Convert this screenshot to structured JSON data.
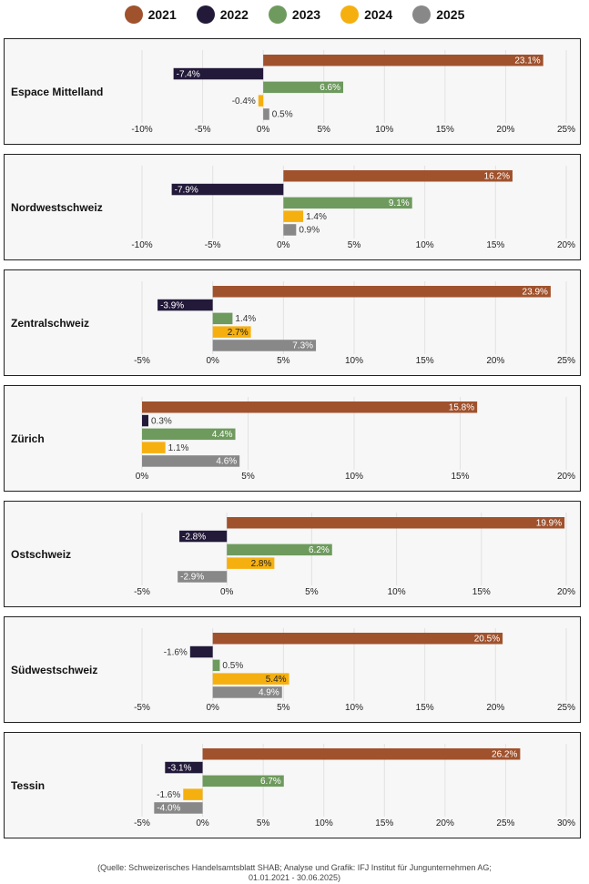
{
  "legend": [
    {
      "label": "2021",
      "color": "#a0522d"
    },
    {
      "label": "2022",
      "color": "#231a3a"
    },
    {
      "label": "2023",
      "color": "#6e9a5e"
    },
    {
      "label": "2024",
      "color": "#f5b010"
    },
    {
      "label": "2025",
      "color": "#888888"
    }
  ],
  "chart_data": [
    {
      "type": "bar",
      "title": "Espace Mittelland",
      "series": [
        "2021",
        "2022",
        "2023",
        "2024",
        "2025"
      ],
      "values": [
        23.1,
        -7.4,
        6.6,
        -0.4,
        0.5
      ],
      "labels": [
        "23.1%",
        "-7.4%",
        "6.6%",
        "-0.4%",
        "0.5%"
      ],
      "xlim": [
        -10,
        25
      ],
      "ticks": [
        -10,
        -5,
        0,
        5,
        10,
        15,
        20,
        25
      ]
    },
    {
      "type": "bar",
      "title": "Nordwestschweiz",
      "series": [
        "2021",
        "2022",
        "2023",
        "2024",
        "2025"
      ],
      "values": [
        16.2,
        -7.9,
        9.1,
        1.4,
        0.9
      ],
      "labels": [
        "16.2%",
        "-7.9%",
        "9.1%",
        "1.4%",
        "0.9%"
      ],
      "xlim": [
        -10,
        20
      ],
      "ticks": [
        -10,
        -5,
        0,
        5,
        10,
        15,
        20
      ]
    },
    {
      "type": "bar",
      "title": "Zentralschweiz",
      "series": [
        "2021",
        "2022",
        "2023",
        "2024",
        "2025"
      ],
      "values": [
        23.9,
        -3.9,
        1.4,
        2.7,
        7.3
      ],
      "labels": [
        "23.9%",
        "-3.9%",
        "1.4%",
        "2.7%",
        "7.3%"
      ],
      "xlim": [
        -5,
        25
      ],
      "ticks": [
        -5,
        0,
        5,
        10,
        15,
        20,
        25
      ]
    },
    {
      "type": "bar",
      "title": "Zürich",
      "series": [
        "2021",
        "2022",
        "2023",
        "2024",
        "2025"
      ],
      "values": [
        15.8,
        0.3,
        4.4,
        1.1,
        4.6
      ],
      "labels": [
        "15.8%",
        "0.3%",
        "4.4%",
        "1.1%",
        "4.6%"
      ],
      "xlim": [
        0,
        20
      ],
      "ticks": [
        0,
        5,
        10,
        15,
        20
      ]
    },
    {
      "type": "bar",
      "title": "Ostschweiz",
      "series": [
        "2021",
        "2022",
        "2023",
        "2024",
        "2025"
      ],
      "values": [
        19.9,
        -2.8,
        6.2,
        2.8,
        -2.9
      ],
      "labels": [
        "19.9%",
        "-2.8%",
        "6.2%",
        "2.8%",
        "-2.9%"
      ],
      "xlim": [
        -5,
        20
      ],
      "ticks": [
        -5,
        0,
        5,
        10,
        15,
        20
      ]
    },
    {
      "type": "bar",
      "title": "Südwestschweiz",
      "series": [
        "2021",
        "2022",
        "2023",
        "2024",
        "2025"
      ],
      "values": [
        20.5,
        -1.6,
        0.5,
        5.4,
        4.9
      ],
      "labels": [
        "20.5%",
        "-1.6%",
        "0.5%",
        "5.4%",
        "4.9%"
      ],
      "xlim": [
        -5,
        25
      ],
      "ticks": [
        -5,
        0,
        5,
        10,
        15,
        20,
        25
      ]
    },
    {
      "type": "bar",
      "title": "Tessin",
      "series": [
        "2021",
        "2022",
        "2023",
        "2024",
        "2025"
      ],
      "values": [
        26.2,
        -3.1,
        6.7,
        -1.6,
        -4.0
      ],
      "labels": [
        "26.2%",
        "-3.1%",
        "6.7%",
        "-1.6%",
        "-4.0%"
      ],
      "xlim": [
        -5,
        30
      ],
      "ticks": [
        -5,
        0,
        5,
        10,
        15,
        20,
        25,
        30
      ]
    }
  ],
  "footer": {
    "line1": "(Quelle: Schweizerisches Handelsamtsblatt SHAB; Analyse und Grafik: IFJ Institut für Jungunternehmen AG;",
    "line2": "01.01.2021 - 30.06.2025)"
  }
}
